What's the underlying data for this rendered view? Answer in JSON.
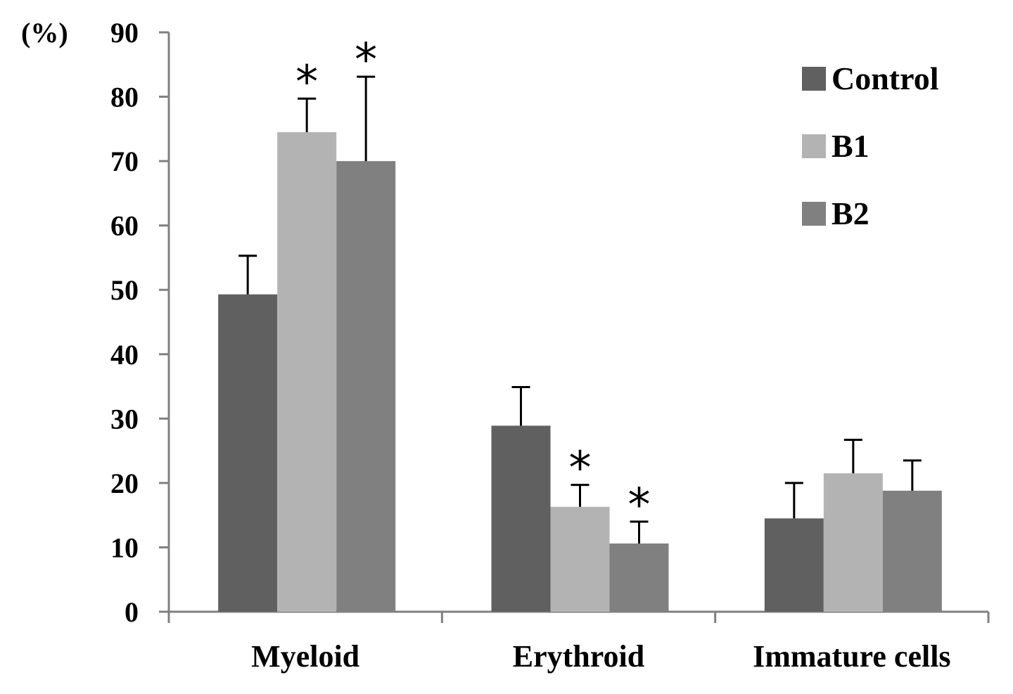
{
  "chart_data": {
    "type": "bar",
    "title": "",
    "xlabel": "",
    "ylabel": "(%)",
    "ylim": [
      0,
      90
    ],
    "yticks": [
      0,
      10,
      20,
      30,
      40,
      50,
      60,
      70,
      80,
      90
    ],
    "categories": [
      "Myeloid",
      "Erythroid",
      "Immature cells"
    ],
    "series": [
      {
        "name": "Control",
        "color": "#606060",
        "values": [
          49.3,
          28.9,
          14.5
        ],
        "errors": [
          6.0,
          6.0,
          5.5
        ],
        "significant": [
          false,
          false,
          false
        ]
      },
      {
        "name": "B1",
        "color": "#b3b3b3",
        "values": [
          74.5,
          16.3,
          21.5
        ],
        "errors": [
          5.2,
          3.4,
          5.2
        ],
        "significant": [
          true,
          true,
          false
        ]
      },
      {
        "name": "B2",
        "color": "#808080",
        "values": [
          70.0,
          10.6,
          18.8
        ],
        "errors": [
          13.1,
          3.4,
          4.7
        ],
        "significant": [
          true,
          true,
          false
        ]
      }
    ],
    "significance_marker": "*",
    "legend": {
      "entries": [
        "Control",
        "B1",
        "B2"
      ],
      "position": "top-right"
    },
    "grid": false
  }
}
